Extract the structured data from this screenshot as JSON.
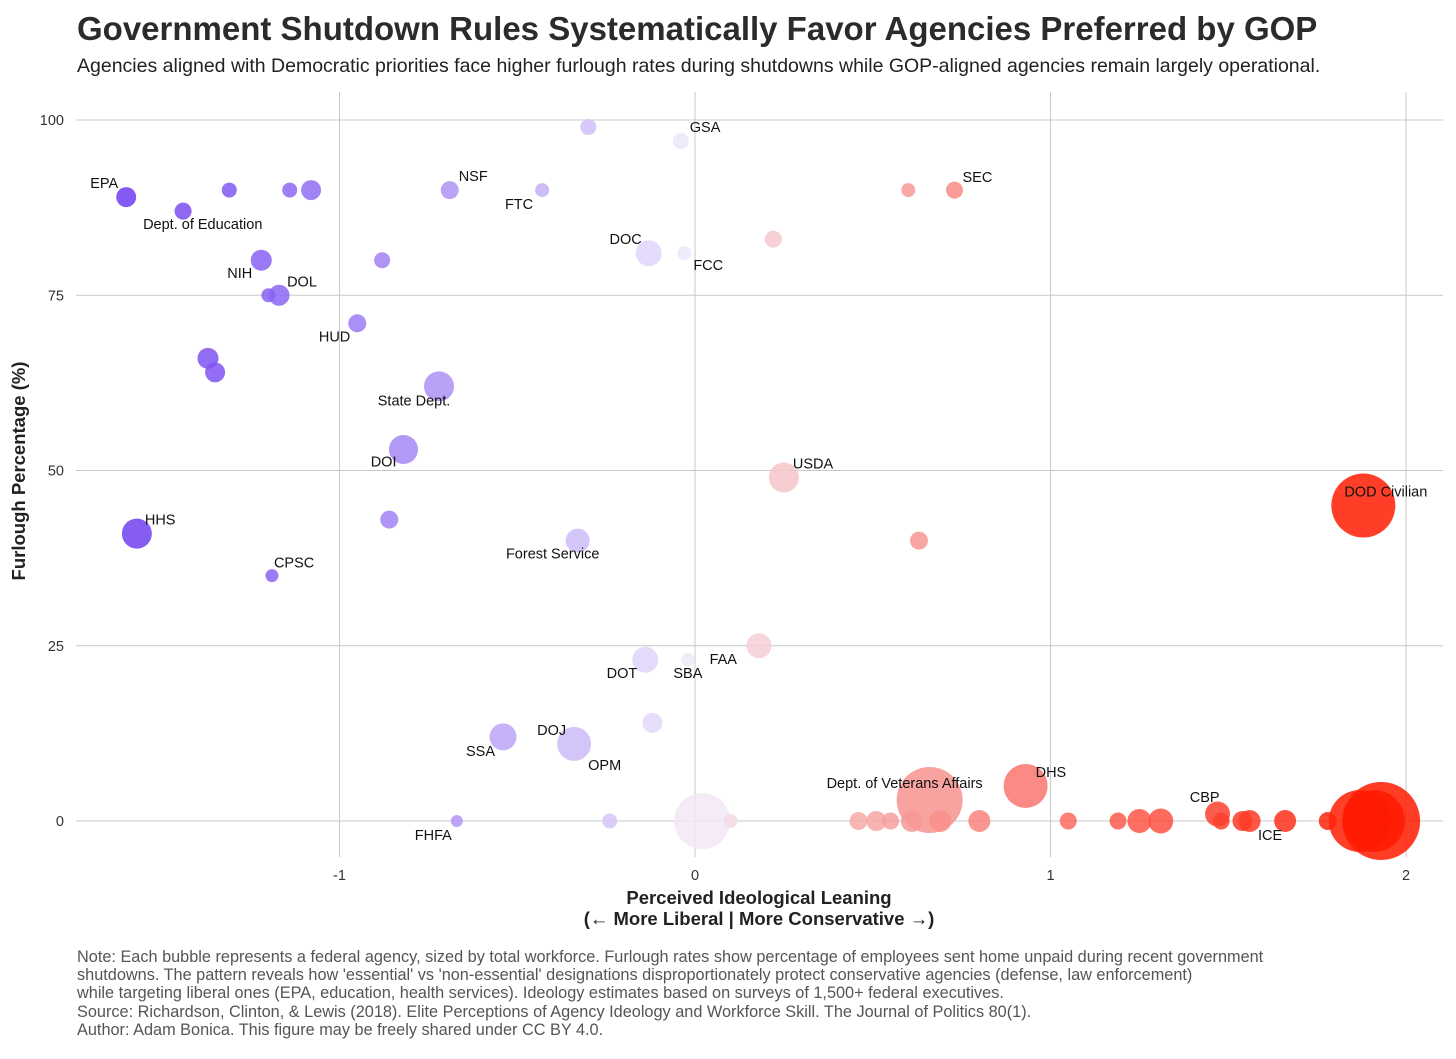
{
  "title": "Government Shutdown Rules Systematically Favor Agencies Preferred by GOP",
  "subtitle": "Agencies aligned with Democratic priorities face higher furlough rates during shutdowns while GOP-aligned agencies remain largely operational.",
  "note_lines": [
    "Note: Each bubble represents a federal agency, sized by total workforce. Furlough rates show percentage of employees sent home unpaid during recent government",
    "shutdowns. The pattern reveals how 'essential' vs 'non-essential' designations disproportionately protect conservative agencies (defense, law enforcement)",
    "while targeting liberal ones (EPA, education, health services). Ideology estimates based on surveys of 1,500+ federal executives.",
    "Source: Richardson, Clinton, & Lewis (2018). Elite Perceptions of Agency Ideology and Workforce Skill. The Journal of Politics 80(1).",
    "Author: Adam Bonica. This figure may be freely shared under CC BY 4.0."
  ],
  "chart_data": {
    "type": "scatter",
    "xlabel": "Perceived Ideological Leaning",
    "xlabel_sub": "(← More Liberal | More Conservative →)",
    "ylabel": "Furlough Percentage (%)",
    "xlim": [
      -1.9,
      2.1
    ],
    "ylim": [
      -5,
      104
    ],
    "x_ticks": [
      -1,
      0,
      1,
      2
    ],
    "x_tick_labels": [
      "-1",
      "0",
      "1",
      "2"
    ],
    "y_ticks": [
      0,
      25,
      50,
      75,
      100
    ],
    "y_tick_labels": [
      "0",
      "25",
      "50",
      "75",
      "100"
    ],
    "grid": true,
    "colors": {
      "liberal": "#6f3ef0",
      "neutral": "#f2eefb",
      "conservative": "#ff1a00",
      "grid": "#c8c8c8",
      "axis_text": "#333333"
    },
    "points": [
      {
        "x": -1.6,
        "y": 89,
        "size": 10
      },
      {
        "x": -1.44,
        "y": 87,
        "size": 8.5
      },
      {
        "x": -1.31,
        "y": 90,
        "size": 7.5
      },
      {
        "x": -1.14,
        "y": 90,
        "size": 7.5
      },
      {
        "x": -1.08,
        "y": 90,
        "size": 10
      },
      {
        "x": -0.69,
        "y": 90,
        "size": 9
      },
      {
        "x": -0.43,
        "y": 90,
        "size": 7
      },
      {
        "x": -0.3,
        "y": 99,
        "size": 8
      },
      {
        "x": -0.04,
        "y": 97,
        "size": 8
      },
      {
        "x": -1.22,
        "y": 80,
        "size": 10.5
      },
      {
        "x": -1.2,
        "y": 75,
        "size": 7
      },
      {
        "x": -1.17,
        "y": 75,
        "size": 10.5
      },
      {
        "x": -0.88,
        "y": 80,
        "size": 8
      },
      {
        "x": -0.95,
        "y": 71,
        "size": 9
      },
      {
        "x": -1.37,
        "y": 66,
        "size": 10.5
      },
      {
        "x": -1.35,
        "y": 64,
        "size": 10
      },
      {
        "x": -0.72,
        "y": 62,
        "size": 15
      },
      {
        "x": -0.82,
        "y": 53,
        "size": 14.5
      },
      {
        "x": -0.86,
        "y": 43,
        "size": 9
      },
      {
        "x": -1.57,
        "y": 41,
        "size": 15
      },
      {
        "x": -1.19,
        "y": 35,
        "size": 6.5
      },
      {
        "x": -0.33,
        "y": 40,
        "size": 12
      },
      {
        "x": -0.13,
        "y": 81,
        "size": 13
      },
      {
        "x": -0.03,
        "y": 81,
        "size": 7
      },
      {
        "x": 0.22,
        "y": 83,
        "size": 8.5
      },
      {
        "x": 0.6,
        "y": 90,
        "size": 7
      },
      {
        "x": 0.73,
        "y": 90,
        "size": 8.5
      },
      {
        "x": 0.25,
        "y": 49,
        "size": 15
      },
      {
        "x": 0.63,
        "y": 40,
        "size": 9
      },
      {
        "x": 1.88,
        "y": 45,
        "size": 32
      },
      {
        "x": -0.14,
        "y": 23,
        "size": 13
      },
      {
        "x": -0.02,
        "y": 23,
        "size": 7
      },
      {
        "x": 0.18,
        "y": 25,
        "size": 12.5
      },
      {
        "x": -0.12,
        "y": 14,
        "size": 10
      },
      {
        "x": -0.54,
        "y": 12,
        "size": 13.5
      },
      {
        "x": -0.34,
        "y": 11,
        "size": 17
      },
      {
        "x": -0.67,
        "y": 0,
        "size": 6
      },
      {
        "x": -0.24,
        "y": 0,
        "size": 7.5
      },
      {
        "x": 0.02,
        "y": 0,
        "size": 28
      },
      {
        "x": 0.1,
        "y": 0,
        "size": 7
      },
      {
        "x": 0.46,
        "y": 0,
        "size": 9
      },
      {
        "x": 0.51,
        "y": 0,
        "size": 10
      },
      {
        "x": 0.55,
        "y": 0,
        "size": 8.5
      },
      {
        "x": 0.61,
        "y": 0,
        "size": 11
      },
      {
        "x": 0.66,
        "y": 3,
        "size": 33
      },
      {
        "x": 0.69,
        "y": 0,
        "size": 11
      },
      {
        "x": 0.8,
        "y": 0,
        "size": 11
      },
      {
        "x": 0.93,
        "y": 5,
        "size": 22
      },
      {
        "x": 1.05,
        "y": 0,
        "size": 8.5
      },
      {
        "x": 1.19,
        "y": 0,
        "size": 8.5
      },
      {
        "x": 1.25,
        "y": 0,
        "size": 12
      },
      {
        "x": 1.31,
        "y": 0,
        "size": 12.5
      },
      {
        "x": 1.47,
        "y": 1,
        "size": 12.5
      },
      {
        "x": 1.48,
        "y": 0,
        "size": 8.5
      },
      {
        "x": 1.54,
        "y": 0,
        "size": 10
      },
      {
        "x": 1.56,
        "y": 0,
        "size": 11
      },
      {
        "x": 1.66,
        "y": 0,
        "size": 11
      },
      {
        "x": 1.78,
        "y": 0,
        "size": 9
      },
      {
        "x": 1.87,
        "y": 0,
        "size": 31
      },
      {
        "x": 1.91,
        "y": 0,
        "size": 31
      },
      {
        "x": 1.93,
        "y": 0,
        "size": 39
      }
    ],
    "labels": [
      {
        "text": "EPA",
        "x": -1.6,
        "y": 89,
        "anchor": "end",
        "dx": -8,
        "dy": -9
      },
      {
        "text": "Dept. of Education",
        "x": -1.44,
        "y": 87,
        "anchor": "start",
        "dx": -40,
        "dy": 18
      },
      {
        "text": "NSF",
        "x": -0.69,
        "y": 90,
        "anchor": "start",
        "dx": 9,
        "dy": -9
      },
      {
        "text": "FTC",
        "x": -0.43,
        "y": 90,
        "anchor": "end",
        "dx": -9,
        "dy": 19
      },
      {
        "text": "GSA",
        "x": -0.04,
        "y": 97,
        "anchor": "start",
        "dx": 9,
        "dy": -9
      },
      {
        "text": "DOC",
        "x": -0.13,
        "y": 81,
        "anchor": "end",
        "dx": -7,
        "dy": -9
      },
      {
        "text": "FCC",
        "x": -0.03,
        "y": 81,
        "anchor": "start",
        "dx": 9,
        "dy": 17
      },
      {
        "text": "SEC",
        "x": 0.73,
        "y": 90,
        "anchor": "start",
        "dx": 8,
        "dy": -8
      },
      {
        "text": "NIH",
        "x": -1.22,
        "y": 80,
        "anchor": "end",
        "dx": -9,
        "dy": 18
      },
      {
        "text": "DOL",
        "x": -1.17,
        "y": 75,
        "anchor": "start",
        "dx": 8,
        "dy": -9
      },
      {
        "text": "HUD",
        "x": -0.95,
        "y": 71,
        "anchor": "end",
        "dx": -7,
        "dy": 18
      },
      {
        "text": "State Dept.",
        "x": -0.72,
        "y": 62,
        "anchor": "middle",
        "dx": -25,
        "dy": 19
      },
      {
        "text": "DOI",
        "x": -0.82,
        "y": 53,
        "anchor": "end",
        "dx": -7,
        "dy": 17
      },
      {
        "text": "USDA",
        "x": 0.25,
        "y": 49,
        "anchor": "start",
        "dx": 9,
        "dy": -9
      },
      {
        "text": "DOD Civilian",
        "x": 1.88,
        "y": 45,
        "anchor": "start",
        "dx": -19,
        "dy": -9
      },
      {
        "text": "HHS",
        "x": -1.57,
        "y": 41,
        "anchor": "start",
        "dx": 8,
        "dy": -9
      },
      {
        "text": "CPSC",
        "x": -1.19,
        "y": 35,
        "anchor": "start",
        "dx": 2,
        "dy": -8
      },
      {
        "text": "Forest Service",
        "x": -0.33,
        "y": 40,
        "anchor": "middle",
        "dx": -25,
        "dy": 18
      },
      {
        "text": "FAA",
        "x": 0.18,
        "y": 25,
        "anchor": "end",
        "dx": -22,
        "dy": 18
      },
      {
        "text": "DOT",
        "x": -0.14,
        "y": 23,
        "anchor": "end",
        "dx": -8,
        "dy": 18
      },
      {
        "text": "SBA",
        "x": -0.02,
        "y": 23,
        "anchor": "middle",
        "dx": 0,
        "dy": 18
      },
      {
        "text": "DOJ",
        "x": -0.34,
        "y": 11,
        "anchor": "end",
        "dx": -8,
        "dy": -9
      },
      {
        "text": "SSA",
        "x": -0.54,
        "y": 12,
        "anchor": "end",
        "dx": -8,
        "dy": 19
      },
      {
        "text": "OPM",
        "x": -0.34,
        "y": 11,
        "anchor": "start",
        "dx": 14,
        "dy": 26
      },
      {
        "text": "Dept. of Veterans Affairs",
        "x": 0.66,
        "y": 3,
        "anchor": "middle",
        "dx": -25,
        "dy": -12
      },
      {
        "text": "DHS",
        "x": 0.93,
        "y": 5,
        "anchor": "start",
        "dx": 10,
        "dy": -9
      },
      {
        "text": "CBP",
        "x": 1.47,
        "y": 1,
        "anchor": "end",
        "dx": 2,
        "dy": -12
      },
      {
        "text": "ICE",
        "x": 1.66,
        "y": 0,
        "anchor": "end",
        "dx": -3,
        "dy": 19
      },
      {
        "text": "FHFA",
        "x": -0.67,
        "y": 0,
        "anchor": "end",
        "dx": -5,
        "dy": 19
      }
    ]
  }
}
